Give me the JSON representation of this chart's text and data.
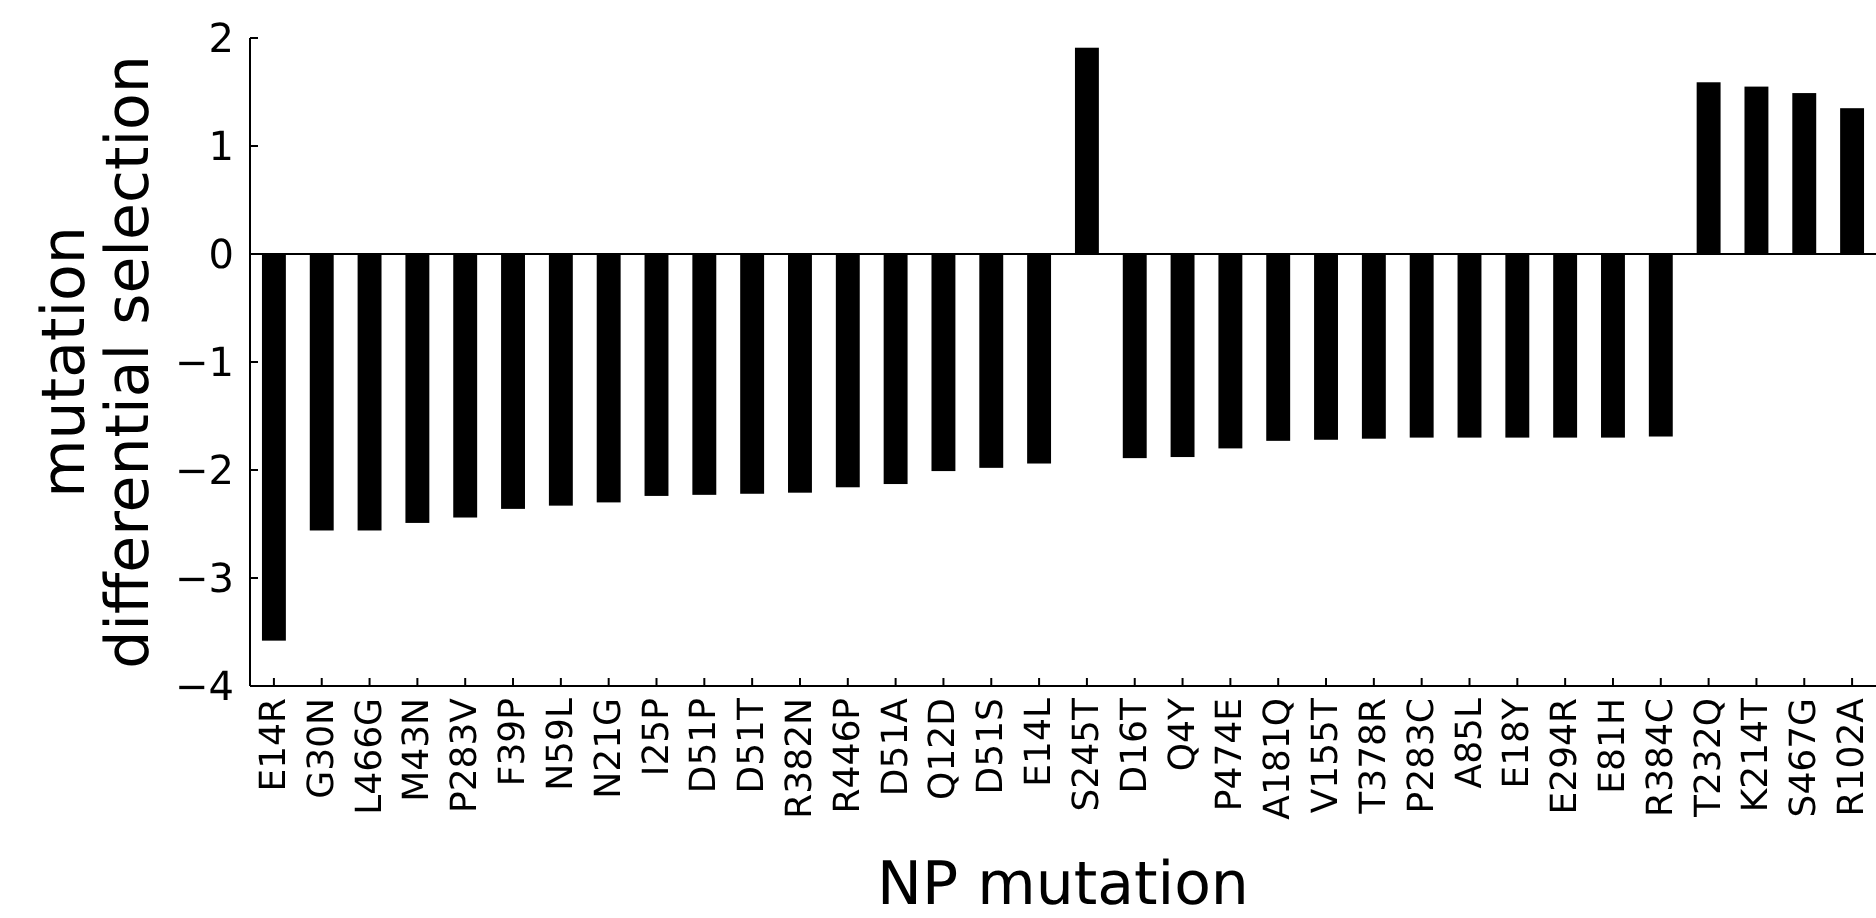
{
  "chart_data": {
    "type": "bar",
    "xlabel": "NP mutation",
    "ylabel": "mutation\ndifferential selection",
    "categories": [
      "E14R",
      "G30N",
      "L466G",
      "M43N",
      "P283V",
      "F39P",
      "N59L",
      "N21G",
      "I25P",
      "D51P",
      "D51T",
      "R382N",
      "R446P",
      "D51A",
      "Q12D",
      "D51S",
      "E14L",
      "S245T",
      "D16T",
      "Q4Y",
      "P474E",
      "A181Q",
      "V155T",
      "T378R",
      "P283C",
      "A85L",
      "E18Y",
      "E294R",
      "E81H",
      "R384C",
      "T232Q",
      "K214T",
      "S467G",
      "R102A"
    ],
    "values": [
      -3.58,
      -2.56,
      -2.56,
      -2.49,
      -2.44,
      -2.36,
      -2.33,
      -2.3,
      -2.24,
      -2.23,
      -2.22,
      -2.21,
      -2.16,
      -2.13,
      -2.01,
      -1.98,
      -1.94,
      1.91,
      -1.89,
      -1.88,
      -1.8,
      -1.73,
      -1.72,
      -1.71,
      -1.7,
      -1.7,
      -1.7,
      -1.7,
      -1.7,
      -1.69,
      1.59,
      1.55,
      1.49,
      1.35
    ],
    "color": "#000000",
    "ylim": [
      -4,
      2
    ],
    "yticks": [
      -4,
      -3,
      -2,
      -1,
      0,
      1,
      2
    ],
    "grid": false,
    "ref_lines": [
      {
        "axis": "y",
        "value": 0
      }
    ]
  }
}
